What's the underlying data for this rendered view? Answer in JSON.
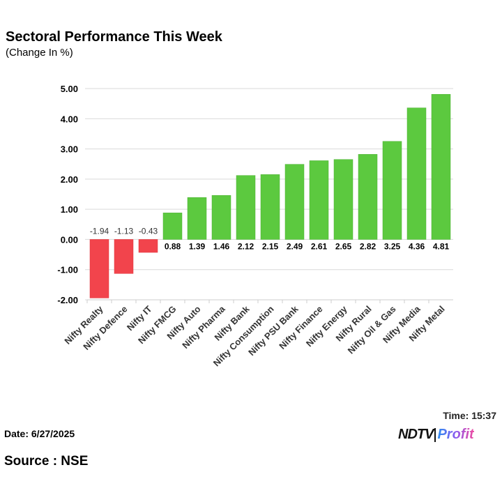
{
  "header": {
    "title": "Sectoral Performance This Week",
    "subtitle": "(Change In %)"
  },
  "footer": {
    "date": "Date: 6/27/2025",
    "source": "Source : NSE",
    "time": "Time: 15:37",
    "logo": "NDTV Profit"
  },
  "colors": {
    "positive": "#5cc93f",
    "negative": "#f2444c",
    "grid": "#d9d9d9"
  },
  "chart_data": {
    "type": "bar",
    "title": "Sectoral Performance This Week",
    "subtitle": "(Change In %)",
    "categories": [
      "Nifty Realty",
      "Nifty Defence",
      "Nifty IT",
      "Nifty FMCG",
      "Nifty Auto",
      "Nifty Pharma",
      "Nifty Bank",
      "Nifty Consumption",
      "Nifty PSU Bank",
      "Nifty Finance",
      "Nifty Energy",
      "Nifty Rural",
      "Nifty Oil & Gas",
      "Nifty Media",
      "Nifty Metal"
    ],
    "values": [
      -1.94,
      -1.13,
      -0.43,
      0.88,
      1.39,
      1.46,
      2.12,
      2.15,
      2.49,
      2.61,
      2.65,
      2.82,
      3.25,
      4.36,
      4.81
    ],
    "ylim": [
      -2,
      5
    ],
    "yticks": [
      "-2.00",
      "-1.00",
      "0.00",
      "1.00",
      "2.00",
      "3.00",
      "4.00",
      "5.00"
    ],
    "grid": true
  }
}
